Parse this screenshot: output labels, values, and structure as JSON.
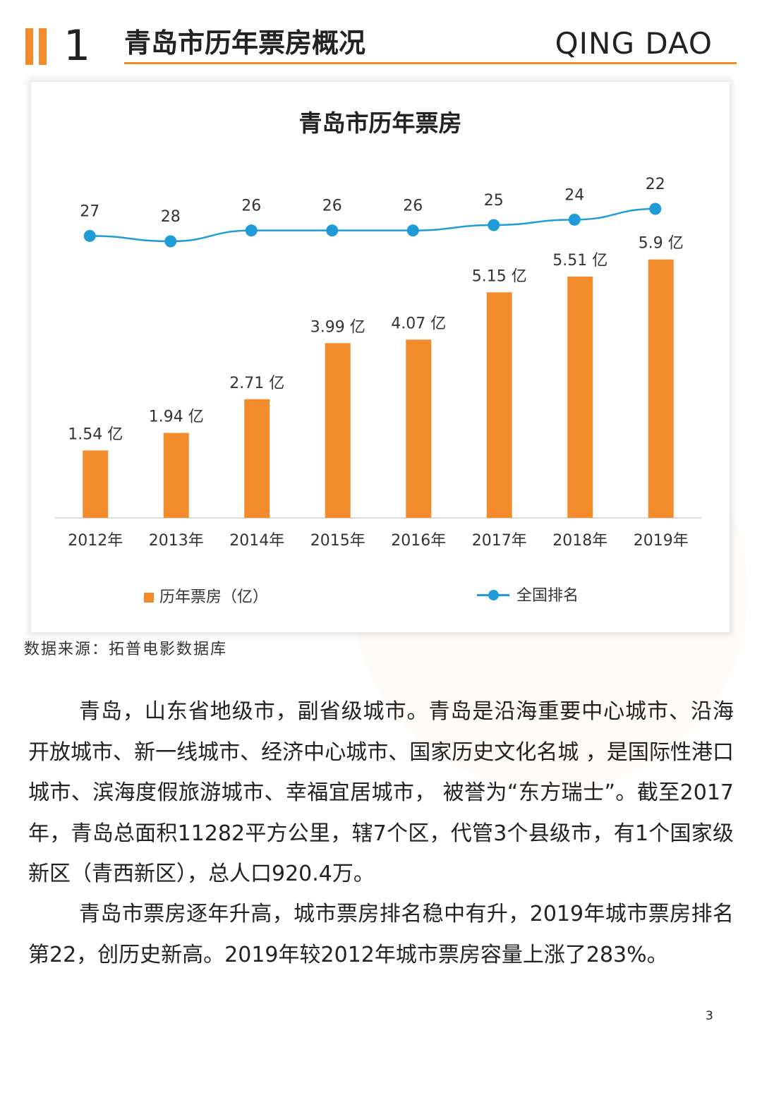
{
  "header": {
    "section_number": "1",
    "title": "青岛市历年票房概况",
    "english": "QING DAO"
  },
  "chart_data": {
    "type": "bar",
    "title": "青岛市历年票房",
    "categories": [
      "2012年",
      "2013年",
      "2014年",
      "2015年",
      "2016年",
      "2017年",
      "2018年",
      "2019年"
    ],
    "series": [
      {
        "name": "历年票房（亿）",
        "type": "bar",
        "values": [
          1.54,
          1.94,
          2.71,
          3.99,
          4.07,
          5.15,
          5.51,
          5.9
        ],
        "labels": [
          "1.54 亿",
          "1.94 亿",
          "2.71 亿",
          "3.99 亿",
          "4.07 亿",
          "5.15 亿",
          "5.51 亿",
          "5.9 亿"
        ],
        "color": "#f28b2b"
      },
      {
        "name": "全国排名",
        "type": "line",
        "values": [
          27,
          28,
          26,
          26,
          26,
          25,
          24,
          22
        ],
        "color": "#1f9bd7"
      }
    ],
    "ylim": [
      0,
      7.7
    ],
    "legend": "bottom"
  },
  "source": "数据来源：拓普电影数据库",
  "paragraphs": [
    "青岛，山东省地级市，副省级城市。青岛是沿海重要中心城市、沿海开放城市、新一线城市、经济中心城市、国家历史文化名城 ，是国际性港口城市、滨海度假旅游城市、幸福宜居城市， 被誉为“东方瑞士”。截至2017年，青岛总面积11282平方公里，辖7个区，代管3个县级市，有1个国家级新区（青西新区），总人口920.4万。",
    "青岛市票房逐年升高，城市票房排名稳中有升，2019年城市票房排名第22，创历史新高。2019年较2012年城市票房容量上涨了283%。"
  ],
  "page_number": "3",
  "colors": {
    "accent": "#f28b2b",
    "line": "#1f9bd7"
  }
}
